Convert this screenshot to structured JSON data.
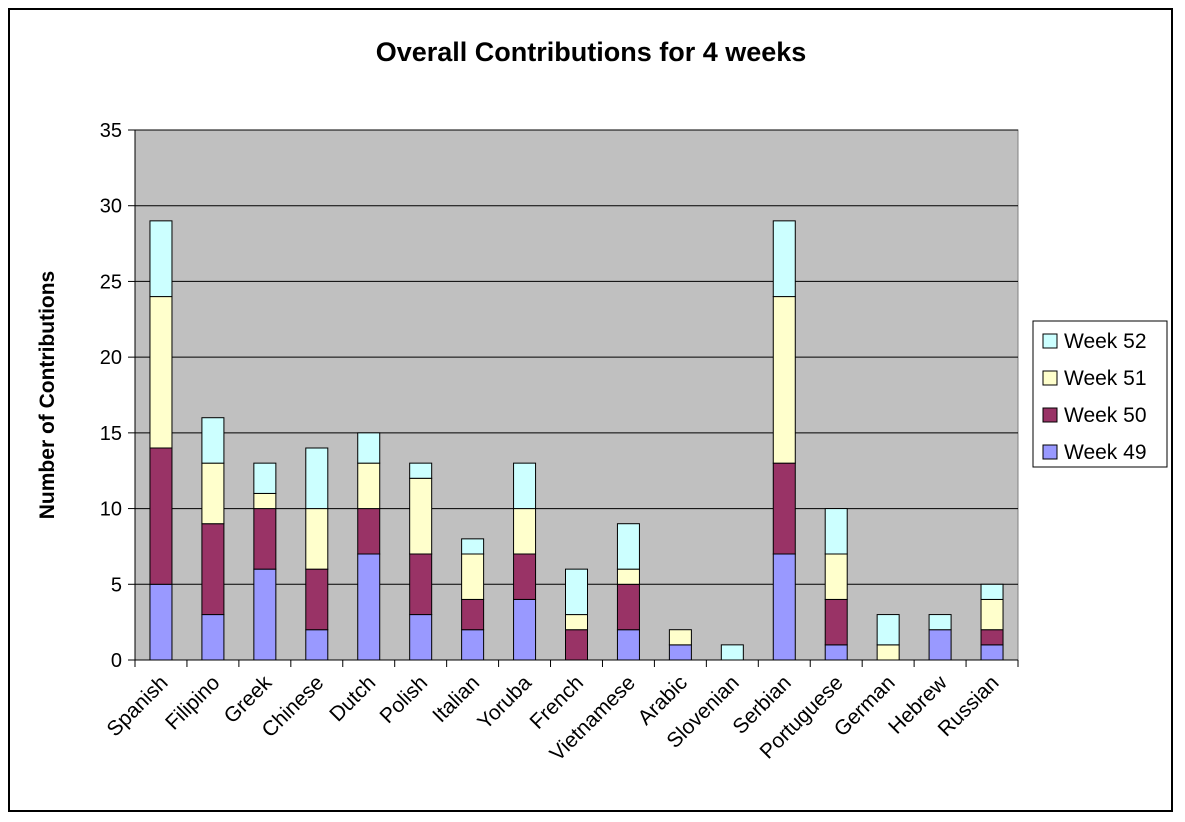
{
  "chart_data": {
    "type": "bar",
    "stacked": true,
    "title": "Overall Contributions for 4 weeks",
    "xlabel": "",
    "ylabel": "Number of Contributions",
    "ylim": [
      0,
      35
    ],
    "yticks": [
      0,
      5,
      10,
      15,
      20,
      25,
      30,
      35
    ],
    "grid": true,
    "legend_position": "right",
    "categories": [
      "Spanish",
      "Filipino",
      "Greek",
      "Chinese",
      "Dutch",
      "Polish",
      "Italian",
      "Yoruba",
      "French",
      "Vietnamese",
      "Arabic",
      "Slovenian",
      "Serbian",
      "Portuguese",
      "German",
      "Hebrew",
      "Russian"
    ],
    "series": [
      {
        "name": "Week 49",
        "color": "#9999ff",
        "values": [
          5,
          3,
          6,
          2,
          7,
          3,
          2,
          4,
          0,
          2,
          1,
          0,
          7,
          1,
          0,
          2,
          1
        ]
      },
      {
        "name": "Week 50",
        "color": "#993366",
        "values": [
          9,
          6,
          4,
          4,
          3,
          4,
          2,
          3,
          2,
          3,
          0,
          0,
          6,
          3,
          0,
          0,
          1
        ]
      },
      {
        "name": "Week 51",
        "color": "#ffffcc",
        "values": [
          10,
          4,
          1,
          4,
          3,
          5,
          3,
          3,
          1,
          1,
          1,
          0,
          11,
          3,
          1,
          0,
          2
        ]
      },
      {
        "name": "Week 52",
        "color": "#ccffff",
        "values": [
          5,
          3,
          2,
          4,
          2,
          1,
          1,
          3,
          3,
          3,
          0,
          1,
          5,
          3,
          2,
          1,
          1
        ]
      }
    ],
    "plot_background": "#c0c0c0"
  }
}
